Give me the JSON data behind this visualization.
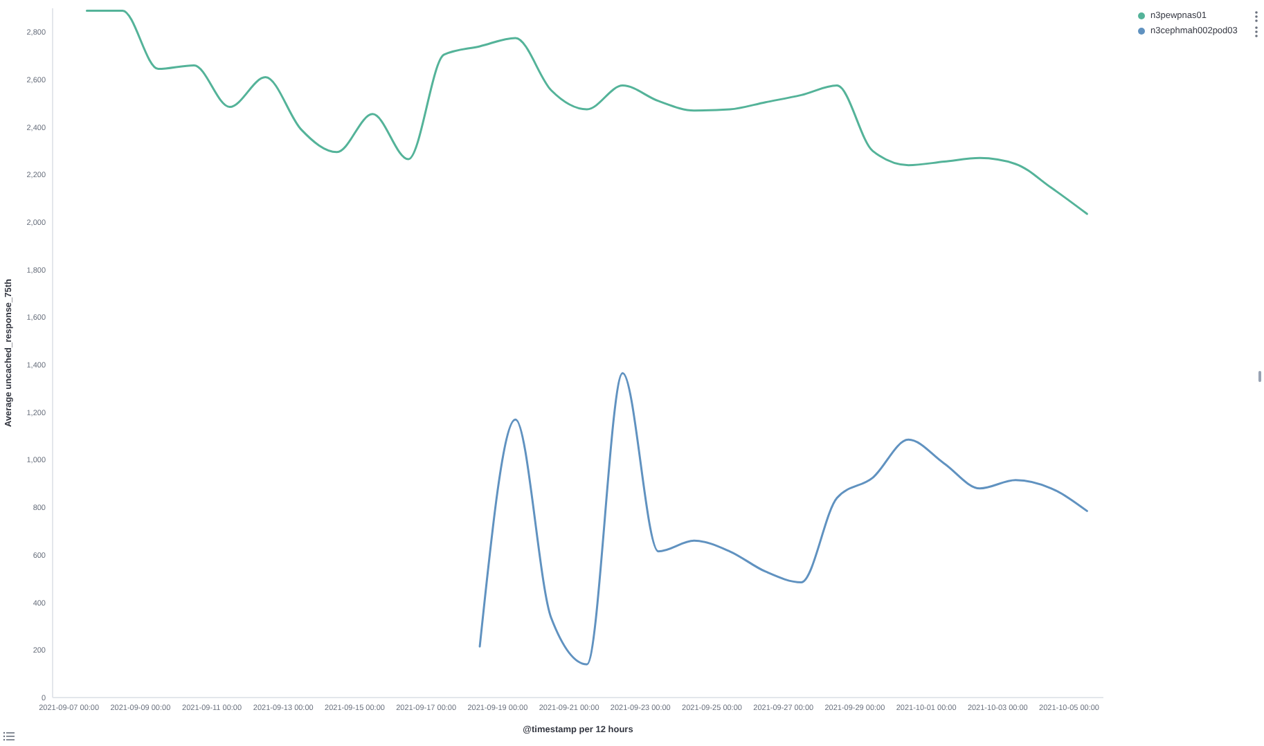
{
  "chart_data": {
    "type": "line",
    "xlabel": "@timestamp per 12 hours",
    "ylabel": "Average uncached_response_75th",
    "x": [
      "2021-09-07T12:00",
      "2021-09-08T12:00",
      "2021-09-09T12:00",
      "2021-09-10T12:00",
      "2021-09-11T12:00",
      "2021-09-12T12:00",
      "2021-09-13T12:00",
      "2021-09-14T12:00",
      "2021-09-15T12:00",
      "2021-09-16T12:00",
      "2021-09-17T12:00",
      "2021-09-18T12:00",
      "2021-09-19T12:00",
      "2021-09-20T12:00",
      "2021-09-21T12:00",
      "2021-09-22T12:00",
      "2021-09-23T12:00",
      "2021-09-24T12:00",
      "2021-09-25T12:00",
      "2021-09-26T12:00",
      "2021-09-27T12:00",
      "2021-09-28T12:00",
      "2021-09-29T12:00",
      "2021-09-30T12:00",
      "2021-10-01T12:00",
      "2021-10-02T12:00",
      "2021-10-03T12:00",
      "2021-10-04T12:00",
      "2021-10-05T12:00"
    ],
    "series": [
      {
        "name": "n3pewpnas01",
        "color": "#54b399",
        "values": [
          2890,
          2890,
          2645,
          2660,
          2485,
          2610,
          2390,
          2295,
          2455,
          2265,
          2705,
          2740,
          2775,
          2555,
          2475,
          2575,
          2510,
          2470,
          2475,
          2505,
          2535,
          2575,
          2300,
          2240,
          2255,
          2270,
          2245,
          2145,
          2035
        ]
      },
      {
        "name": "n3cephmah002pod03",
        "color": "#6092c0",
        "values": [
          null,
          null,
          null,
          null,
          null,
          null,
          null,
          null,
          null,
          null,
          null,
          215,
          1170,
          335,
          140,
          1365,
          615,
          660,
          615,
          530,
          485,
          840,
          925,
          1085,
          985,
          880,
          915,
          880,
          785
        ]
      }
    ],
    "xlim": [
      "2021-09-06T13:00",
      "2021-10-05T23:00"
    ],
    "xticks": [
      {
        "value": "2021-09-07T00:00",
        "label": "2021-09-07 00:00"
      },
      {
        "value": "2021-09-09T00:00",
        "label": "2021-09-09 00:00"
      },
      {
        "value": "2021-09-11T00:00",
        "label": "2021-09-11 00:00"
      },
      {
        "value": "2021-09-13T00:00",
        "label": "2021-09-13 00:00"
      },
      {
        "value": "2021-09-15T00:00",
        "label": "2021-09-15 00:00"
      },
      {
        "value": "2021-09-17T00:00",
        "label": "2021-09-17 00:00"
      },
      {
        "value": "2021-09-19T00:00",
        "label": "2021-09-19 00:00"
      },
      {
        "value": "2021-09-21T00:00",
        "label": "2021-09-21 00:00"
      },
      {
        "value": "2021-09-23T00:00",
        "label": "2021-09-23 00:00"
      },
      {
        "value": "2021-09-25T00:00",
        "label": "2021-09-25 00:00"
      },
      {
        "value": "2021-09-27T00:00",
        "label": "2021-09-27 00:00"
      },
      {
        "value": "2021-09-29T00:00",
        "label": "2021-09-29 00:00"
      },
      {
        "value": "2021-10-01T00:00",
        "label": "2021-10-01 00:00"
      },
      {
        "value": "2021-10-03T00:00",
        "label": "2021-10-03 00:00"
      },
      {
        "value": "2021-10-05T00:00",
        "label": "2021-10-05 00:00"
      }
    ],
    "ylim": [
      0,
      2900
    ],
    "yticks": [
      0,
      200,
      400,
      600,
      800,
      {
        "value": 1000,
        "label": "1,000"
      },
      {
        "value": 1200,
        "label": "1,200"
      },
      {
        "value": 1400,
        "label": "1,400"
      },
      {
        "value": 1600,
        "label": "1,600"
      },
      {
        "value": 1800,
        "label": "1,800"
      },
      {
        "value": 2000,
        "label": "2,000"
      },
      {
        "value": 2200,
        "label": "2,200"
      },
      {
        "value": 2400,
        "label": "2,400"
      },
      {
        "value": 2600,
        "label": "2,600"
      },
      {
        "value": 2800,
        "label": "2,800"
      }
    ],
    "legend": "top right",
    "marker": "none",
    "line_style": "solid"
  }
}
